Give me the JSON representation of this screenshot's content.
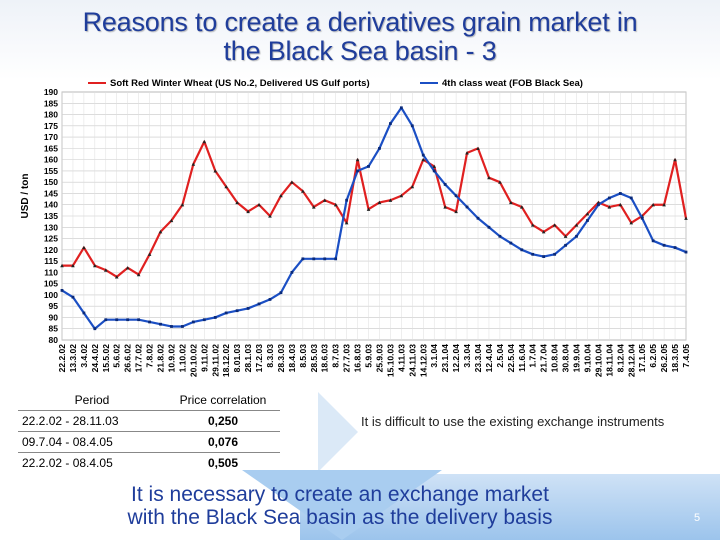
{
  "title": {
    "line1": "Reasons to create a derivatives grain market in",
    "line2": "the Black Sea basin - 3"
  },
  "chart_data": {
    "type": "line",
    "ylabel": "USD / ton",
    "ylim": [
      80,
      190
    ],
    "yticks": [
      80,
      85,
      90,
      95,
      100,
      105,
      110,
      115,
      120,
      125,
      130,
      135,
      140,
      145,
      150,
      155,
      160,
      165,
      170,
      175,
      180,
      185,
      190
    ],
    "x": [
      "22.2.02",
      "13.3.02",
      "3.4.02",
      "24.4.02",
      "15.5.02",
      "5.6.02",
      "26.6.02",
      "17.7.02",
      "7.8.02",
      "21.8.02",
      "10.9.02",
      "1.10.02",
      "20.10.02",
      "9.11.02",
      "29.11.02",
      "18.12.02",
      "8.01.03",
      "28.1.03",
      "17.2.03",
      "8.3.03",
      "28.3.03",
      "18.4.03",
      "8.5.03",
      "28.5.03",
      "18.6.03",
      "8.7.03",
      "27.7.03",
      "16.8.03",
      "5.9.03",
      "25.9.03",
      "15.10.03",
      "4.11.03",
      "24.11.03",
      "14.12.03",
      "3.1.04",
      "23.1.04",
      "12.2.04",
      "3.3.04",
      "23.3.04",
      "12.4.04",
      "2.5.04",
      "22.5.04",
      "11.6.04",
      "1.7.04",
      "21.7.04",
      "10.8.04",
      "30.8.04",
      "19.9.04",
      "9.10.04",
      "29.10.04",
      "18.11.04",
      "8.12.04",
      "28.12.04",
      "17.1.05",
      "6.2.05",
      "26.2.05",
      "18.3.05",
      "7.4.05"
    ],
    "grid": true,
    "legend_position": "top",
    "series": [
      {
        "name": "Soft Red Winter Wheat (US No.2, Delivered US Gulf ports)",
        "color": "#e02020",
        "values": [
          113,
          113,
          121,
          113,
          111,
          108,
          112,
          109,
          118,
          128,
          133,
          140,
          158,
          168,
          155,
          148,
          141,
          137,
          140,
          135,
          144,
          150,
          146,
          139,
          142,
          140,
          132,
          160,
          138,
          141,
          142,
          144,
          148,
          160,
          157,
          139,
          137,
          163,
          165,
          152,
          150,
          141,
          139,
          131,
          128,
          131,
          126,
          131,
          136,
          141,
          139,
          140,
          132,
          135,
          140,
          140,
          160,
          134
        ]
      },
      {
        "name": "4th class weat (FOB Black Sea)",
        "color": "#1b4fc4",
        "values": [
          102,
          99,
          92,
          85,
          89,
          89,
          89,
          89,
          88,
          87,
          86,
          86,
          88,
          89,
          90,
          92,
          93,
          94,
          96,
          98,
          101,
          110,
          116,
          116,
          116,
          116,
          142,
          155,
          157,
          165,
          176,
          183,
          175,
          162,
          155,
          149,
          144,
          139,
          134,
          130,
          126,
          123,
          120,
          118,
          117,
          118,
          122,
          126,
          133,
          140,
          143,
          145,
          143,
          134,
          124,
          122,
          121,
          119
        ]
      }
    ]
  },
  "table": {
    "headers": [
      "Period",
      "Price correlation"
    ],
    "rows": [
      {
        "period": "22.2.02 - 28.11.03",
        "value": "0,250"
      },
      {
        "period": "09.7.04 - 08.4.05",
        "value": "0,076"
      },
      {
        "period": "22.2.02 - 08.4.05",
        "value": "0,505"
      }
    ]
  },
  "note": "It is difficult to use the existing exchange instruments",
  "bottom": {
    "line1": "It is necessary to create an exchange market",
    "line2": "with the Black Sea basin as the delivery basis"
  },
  "page_number": "5"
}
